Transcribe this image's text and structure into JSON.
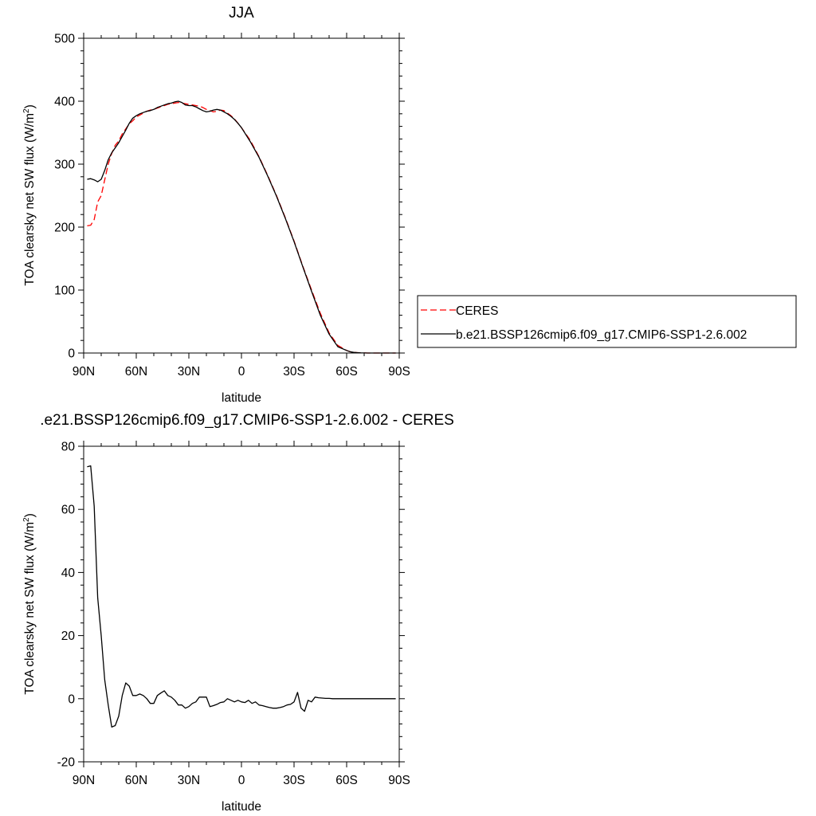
{
  "chart_data": [
    {
      "type": "line",
      "title": "JJA",
      "xlabel": "latitude",
      "ylabel_main": "TOA clearsky net SW flux (W/m",
      "ylabel_sup": "2",
      "ylabel_close": ")",
      "xlim": [
        90,
        -90
      ],
      "ylim": [
        0,
        500
      ],
      "x_ticks": [
        {
          "v": 90,
          "label": "90N"
        },
        {
          "v": 60,
          "label": "60N"
        },
        {
          "v": 30,
          "label": "30N"
        },
        {
          "v": 0,
          "label": "0"
        },
        {
          "v": -30,
          "label": "30S"
        },
        {
          "v": -60,
          "label": "60S"
        },
        {
          "v": -90,
          "label": "90S"
        }
      ],
      "y_ticks": [
        0,
        100,
        200,
        300,
        400,
        500
      ],
      "legend_position": "right",
      "series": [
        {
          "name": "CERES",
          "color": "#ff0000",
          "dash": true,
          "x": [
            88,
            86,
            84,
            82,
            80,
            78,
            76,
            74,
            72,
            70,
            68,
            66,
            64,
            62,
            60,
            58,
            56,
            54,
            52,
            50,
            48,
            46,
            44,
            42,
            40,
            38,
            36,
            34,
            32,
            30,
            28,
            26,
            24,
            22,
            20,
            18,
            16,
            14,
            12,
            10,
            8,
            6,
            4,
            2,
            0,
            -5,
            -10,
            -15,
            -20,
            -25,
            -30,
            -35,
            -40,
            -45,
            -50,
            -55,
            -60,
            -62,
            -64,
            -66,
            -68,
            -70,
            -72,
            -74,
            -76,
            -78,
            -80,
            -82,
            -84,
            -86,
            -88
          ],
          "y": [
            202,
            203,
            212,
            240,
            250,
            275,
            300,
            317,
            330,
            337,
            348,
            356,
            364,
            369,
            375,
            378,
            381,
            384,
            386,
            387,
            389,
            391,
            393,
            395,
            396,
            397,
            398,
            397,
            396,
            395,
            394,
            393,
            392,
            390,
            387,
            385,
            383,
            384,
            386,
            385,
            381,
            377,
            372,
            365,
            358,
            338,
            312,
            282,
            250,
            215,
            178,
            138,
            100,
            63,
            32,
            12,
            4,
            2,
            1,
            0.6,
            0.3,
            0.1,
            0,
            0,
            0,
            0,
            0,
            0,
            0,
            0,
            0
          ]
        },
        {
          "name": "b.e21.BSSP126cmip6.f09_g17.CMIP6-SSP1-2.6.002",
          "color": "#000000",
          "dash": false,
          "x": [
            88,
            86,
            84,
            82,
            80,
            78,
            76,
            74,
            72,
            70,
            68,
            66,
            64,
            62,
            60,
            58,
            56,
            54,
            52,
            50,
            48,
            46,
            44,
            42,
            40,
            38,
            36,
            34,
            32,
            30,
            28,
            26,
            24,
            22,
            20,
            18,
            16,
            14,
            12,
            10,
            8,
            6,
            4,
            2,
            0,
            -5,
            -10,
            -15,
            -20,
            -25,
            -30,
            -35,
            -40,
            -45,
            -50,
            -55,
            -60,
            -62,
            -64,
            -66,
            -68,
            -70,
            -72,
            -74,
            -76,
            -78,
            -80,
            -82,
            -84,
            -86,
            -88
          ],
          "y": [
            276,
            277,
            275,
            272,
            276,
            290,
            307,
            318,
            326,
            334,
            344,
            354,
            365,
            373,
            377,
            380,
            382,
            384,
            385,
            387,
            390,
            392,
            394,
            396,
            397,
            399,
            400,
            398,
            394,
            393,
            393,
            391,
            388,
            385,
            383,
            384,
            386,
            387,
            386,
            383,
            380,
            376,
            371,
            365,
            358,
            336,
            311,
            281,
            249,
            214,
            177,
            137,
            98,
            60,
            30,
            10,
            4,
            2,
            1,
            0.6,
            0.3,
            0.1,
            0,
            0,
            0,
            0,
            0,
            0,
            0,
            0,
            0
          ]
        }
      ]
    },
    {
      "type": "line",
      "title": ".e21.BSSP126cmip6.f09_g17.CMIP6-SSP1-2.6.002 - CERES",
      "xlabel": "latitude",
      "ylabel_main": "TOA clearsky net SW flux (W/m",
      "ylabel_sup": "2",
      "ylabel_close": ")",
      "xlim": [
        90,
        -90
      ],
      "ylim": [
        -20,
        80
      ],
      "x_ticks": [
        {
          "v": 90,
          "label": "90N"
        },
        {
          "v": 60,
          "label": "60N"
        },
        {
          "v": 30,
          "label": "30N"
        },
        {
          "v": 0,
          "label": "0"
        },
        {
          "v": -30,
          "label": "30S"
        },
        {
          "v": -60,
          "label": "60S"
        },
        {
          "v": -90,
          "label": "90S"
        }
      ],
      "y_ticks": [
        -20,
        0,
        20,
        40,
        60,
        80
      ],
      "series": [
        {
          "color": "#000000",
          "x": [
            88,
            86,
            84,
            82,
            80,
            78,
            76,
            74,
            72,
            70,
            68,
            66,
            64,
            62,
            60,
            58,
            56,
            54,
            52,
            50,
            48,
            46,
            44,
            42,
            40,
            38,
            36,
            34,
            32,
            30,
            28,
            26,
            24,
            22,
            20,
            18,
            16,
            14,
            12,
            10,
            8,
            6,
            4,
            2,
            0,
            -2,
            -4,
            -6,
            -8,
            -10,
            -12,
            -14,
            -16,
            -18,
            -20,
            -22,
            -24,
            -26,
            -28,
            -30,
            -32,
            -34,
            -36,
            -38,
            -40,
            -42,
            -44,
            -46,
            -48,
            -50,
            -52,
            -54,
            -56,
            -58,
            -60,
            -62,
            -64,
            -66,
            -68,
            -70,
            -72,
            -74,
            -76,
            -78,
            -80,
            -82,
            -84,
            -86,
            -88
          ],
          "y": [
            73.5,
            73.8,
            61,
            32,
            20,
            6,
            -2,
            -9,
            -8.5,
            -5.5,
            1,
            5,
            4,
            1,
            1,
            1.5,
            1,
            0,
            -1.5,
            -1.5,
            1,
            1.8,
            2.5,
            1,
            0.5,
            -0.5,
            -2,
            -2,
            -3,
            -2.5,
            -1.5,
            -1,
            0.5,
            0.5,
            0.5,
            -2.5,
            -2.2,
            -1.8,
            -1.2,
            -1,
            0,
            -0.5,
            -1,
            -0.5,
            -1,
            -1.2,
            -0.5,
            -1.5,
            -1,
            -2,
            -2.2,
            -2.5,
            -2.8,
            -3,
            -3,
            -2.8,
            -2.5,
            -2,
            -1.8,
            -1,
            2,
            -3,
            -4,
            -0.5,
            -1,
            0.5,
            0.3,
            0.2,
            0.1,
            0.1,
            0,
            0,
            0,
            0,
            0,
            0,
            0,
            0,
            0,
            0,
            0,
            0,
            0,
            0,
            0,
            0,
            0,
            0,
            0
          ]
        }
      ]
    }
  ]
}
